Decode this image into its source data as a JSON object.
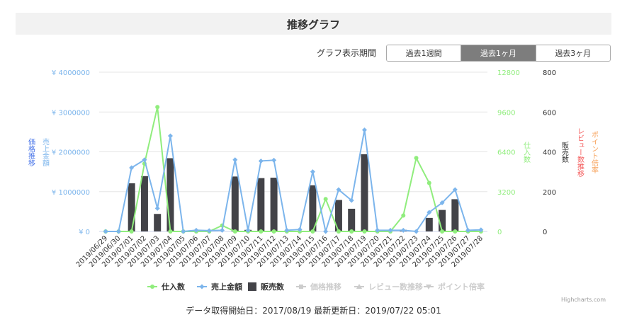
{
  "header": {
    "title": "推移グラフ"
  },
  "period": {
    "label": "グラフ表示期間",
    "options": [
      "過去1週間",
      "過去1ヶ月",
      "過去3ヶ月"
    ],
    "selected": "過去1ヶ月"
  },
  "footer": {
    "text": "データ取得開始日：2017/08/19 最新更新日：2019/07/22 05:01"
  },
  "credit": "Highcharts.com",
  "colors": {
    "shiire": "#90ed7d",
    "uriage": "#7cb5ec",
    "hanbai": "#434348",
    "price_axis": "#4572e8",
    "review_axis": "#f45b5b",
    "point_axis": "#f7a35c",
    "legend_disabled": "#cccccc"
  },
  "chart_data": {
    "type": "bar",
    "categories": [
      "2019/06/29",
      "2019/06/30",
      "2019/07/01",
      "2019/07/02",
      "2019/07/03",
      "2019/07/04",
      "2019/07/05",
      "2019/07/06",
      "2019/07/07",
      "2019/07/08",
      "2019/07/09",
      "2019/07/10",
      "2019/07/11",
      "2019/07/12",
      "2019/07/13",
      "2019/07/14",
      "2019/07/15",
      "2019/07/16",
      "2019/07/17",
      "2019/07/18",
      "2019/07/19",
      "2019/07/20",
      "2019/07/21",
      "2019/07/22",
      "2019/07/23",
      "2019/07/24",
      "2019/07/25",
      "2019/07/26",
      "2019/07/27",
      "2019/07/28"
    ],
    "series": [
      {
        "name": "仕入数",
        "kind": "line",
        "axis": "shiire",
        "values": [
          0,
          0,
          0,
          5450,
          10000,
          0,
          0,
          0,
          0,
          480,
          0,
          0,
          0,
          0,
          0,
          0,
          0,
          2600,
          0,
          0,
          0,
          0,
          0,
          1280,
          5900,
          3900,
          0,
          0,
          0,
          0
        ]
      },
      {
        "name": "売上金額",
        "kind": "line",
        "axis": "uriage",
        "values": [
          0,
          0,
          1600000,
          1800000,
          580000,
          2400000,
          0,
          30000,
          20000,
          30000,
          1800000,
          30000,
          1770000,
          1790000,
          30000,
          50000,
          1500000,
          0,
          1050000,
          780000,
          2550000,
          30000,
          30000,
          30000,
          0,
          480000,
          720000,
          1050000,
          30000,
          40000
        ]
      },
      {
        "name": "販売数",
        "kind": "bar",
        "axis": "hanbai",
        "values": [
          0,
          0,
          242,
          278,
          88,
          368,
          0,
          0,
          0,
          0,
          276,
          8,
          268,
          270,
          0,
          0,
          232,
          0,
          158,
          114,
          388,
          0,
          0,
          8,
          0,
          68,
          108,
          162,
          0,
          0
        ]
      }
    ],
    "legend_disabled": [
      "価格推移",
      "レビュー数推移",
      "ポイント倍率"
    ],
    "axes": {
      "uriage": {
        "title": "売上金額",
        "ticks": [
          "¥ 0",
          "¥ 1000000",
          "¥ 2000000",
          "¥ 3000000",
          "¥ 4000000"
        ],
        "range": [
          0,
          4000000
        ]
      },
      "price": {
        "title": "価格推移"
      },
      "shiire": {
        "title": "仕入数",
        "ticks": [
          "0",
          "3200",
          "6400",
          "9600",
          "12800"
        ],
        "range": [
          0,
          12800
        ]
      },
      "hanbai": {
        "title": "販売数",
        "ticks": [
          "0",
          "200",
          "400",
          "600",
          "800"
        ],
        "range": [
          0,
          800
        ]
      },
      "review": {
        "title": "レビュー数推移"
      },
      "point": {
        "title": "ポイント倍率"
      }
    },
    "grid": true,
    "legend_position": "bottom-center"
  }
}
